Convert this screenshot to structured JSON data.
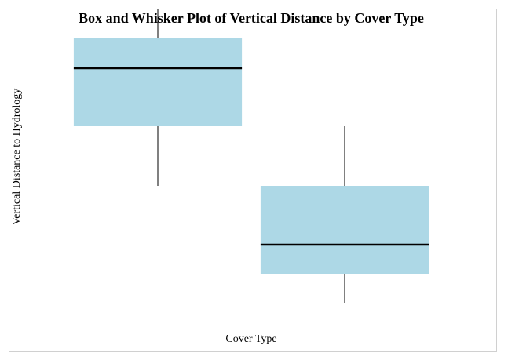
{
  "chart_data": {
    "type": "box",
    "title": "Box and Whisker Plot of Vertical Distance by Cover Type",
    "x_label": "Cover Type",
    "y_label": "Vertical Distance to Hydrology",
    "categories": [
      null,
      null
    ],
    "color": "#add8e6",
    "ylim": [
      -62,
      375
    ],
    "boxes": [
      {
        "min": 149,
        "q1": 225,
        "median": 299,
        "q3": 337,
        "max": 375
      },
      {
        "min": 0,
        "q1": 37,
        "median": 74,
        "q3": 149,
        "max": 225
      }
    ]
  }
}
